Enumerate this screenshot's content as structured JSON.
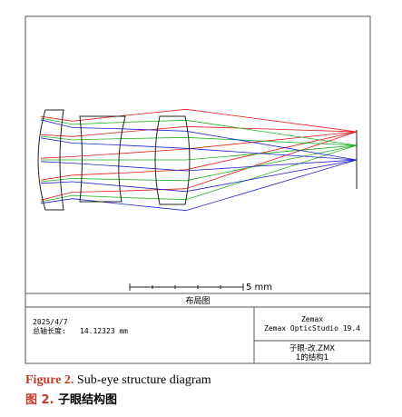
{
  "scale_bar": {
    "label": "5 mm"
  },
  "title_bar": "布局图",
  "info": {
    "date": "2025/4/7",
    "length_label": "总轴长度:",
    "length_value": "14.12323 mm"
  },
  "software": {
    "vendor": "Zemax",
    "product": "Zemax OpticStudio 19.4"
  },
  "file": {
    "name": "子眼-改.ZMX",
    "config": "1的结构1"
  },
  "caption": {
    "en": {
      "label": "Figure 2.",
      "text": "Sub-eye structure diagram"
    },
    "zh": {
      "label": "图 2.",
      "text": "子眼结构图"
    }
  }
}
